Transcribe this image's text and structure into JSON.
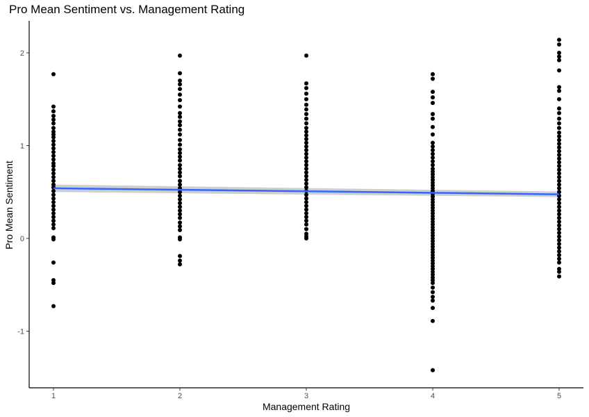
{
  "chart_data": {
    "type": "scatter",
    "title": "Pro Mean Sentiment vs. Management Rating",
    "xlabel": "Management Rating",
    "ylabel": "Pro Mean Sentiment",
    "xlim": [
      0.8,
      5.2
    ],
    "ylim": [
      -1.6,
      2.3
    ],
    "x_ticks": [
      1,
      2,
      3,
      4,
      5
    ],
    "y_ticks": [
      -1,
      0,
      1,
      2
    ],
    "grid": false,
    "legend": "none",
    "point_color": "#000000",
    "series": [
      {
        "x": 1,
        "y": [
          1.77,
          1.42,
          1.37,
          1.32,
          1.28,
          1.24,
          1.19,
          1.15,
          1.12,
          1.09,
          1.05,
          1.01,
          0.97,
          0.93,
          0.89,
          0.85,
          0.81,
          0.78,
          0.74,
          0.7,
          0.66,
          0.62,
          0.58,
          0.55,
          0.51,
          0.47,
          0.43,
          0.39,
          0.35,
          0.31,
          0.27,
          0.23,
          0.19,
          0.15,
          0.11,
          0.01,
          -0.01,
          -0.26,
          -0.45,
          -0.48,
          -0.73
        ]
      },
      {
        "x": 2,
        "y": [
          1.97,
          1.78,
          1.7,
          1.66,
          1.61,
          1.55,
          1.49,
          1.42,
          1.35,
          1.31,
          1.26,
          1.22,
          1.17,
          1.12,
          1.06,
          1.01,
          0.96,
          0.92,
          0.88,
          0.84,
          0.79,
          0.75,
          0.71,
          0.67,
          0.62,
          0.58,
          0.54,
          0.5,
          0.46,
          0.42,
          0.38,
          0.34,
          0.3,
          0.26,
          0.22,
          0.17,
          0.13,
          0.09,
          0.01,
          -0.01,
          -0.19,
          -0.24,
          -0.28
        ]
      },
      {
        "x": 3,
        "y": [
          1.97,
          1.67,
          1.62,
          1.56,
          1.5,
          1.44,
          1.39,
          1.34,
          1.29,
          1.24,
          1.19,
          1.15,
          1.11,
          1.07,
          1.03,
          0.99,
          0.95,
          0.91,
          0.87,
          0.83,
          0.79,
          0.75,
          0.71,
          0.67,
          0.63,
          0.59,
          0.55,
          0.51,
          0.47,
          0.43,
          0.39,
          0.35,
          0.31,
          0.27,
          0.23,
          0.19,
          0.15,
          0.1,
          0.05,
          0.02,
          0.0
        ]
      },
      {
        "x": 4,
        "y": [
          1.77,
          1.72,
          1.58,
          1.52,
          1.46,
          1.34,
          1.29,
          1.2,
          1.12,
          1.03,
          0.99,
          0.95,
          0.91,
          0.87,
          0.83,
          0.79,
          0.75,
          0.72,
          0.69,
          0.66,
          0.63,
          0.6,
          0.57,
          0.54,
          0.51,
          0.48,
          0.45,
          0.42,
          0.39,
          0.36,
          0.33,
          0.3,
          0.27,
          0.24,
          0.21,
          0.18,
          0.15,
          0.12,
          0.09,
          0.06,
          0.03,
          0.0,
          -0.03,
          -0.06,
          -0.09,
          -0.12,
          -0.15,
          -0.18,
          -0.21,
          -0.24,
          -0.27,
          -0.3,
          -0.33,
          -0.36,
          -0.39,
          -0.42,
          -0.45,
          -0.48,
          -0.53,
          -0.58,
          -0.63,
          -0.67,
          -0.75,
          -0.89,
          -1.42
        ]
      },
      {
        "x": 5,
        "y": [
          2.14,
          2.09,
          2.0,
          1.96,
          1.92,
          1.81,
          1.63,
          1.59,
          1.5,
          1.4,
          1.35,
          1.29,
          1.24,
          1.19,
          1.14,
          1.1,
          1.06,
          1.02,
          0.98,
          0.94,
          0.9,
          0.86,
          0.82,
          0.78,
          0.74,
          0.7,
          0.66,
          0.62,
          0.58,
          0.54,
          0.5,
          0.46,
          0.42,
          0.38,
          0.34,
          0.3,
          0.26,
          0.22,
          0.18,
          0.14,
          0.1,
          0.06,
          0.02,
          -0.02,
          -0.06,
          -0.1,
          -0.14,
          -0.18,
          -0.22,
          -0.26,
          -0.33,
          -0.36,
          -0.41
        ]
      }
    ],
    "trend_line": {
      "x": [
        1,
        5
      ],
      "y": [
        0.54,
        0.475
      ],
      "color": "#3366FF",
      "band_lower": [
        0.5,
        0.445
      ],
      "band_upper": [
        0.58,
        0.505
      ],
      "band_color": "#BEBEBE"
    }
  }
}
